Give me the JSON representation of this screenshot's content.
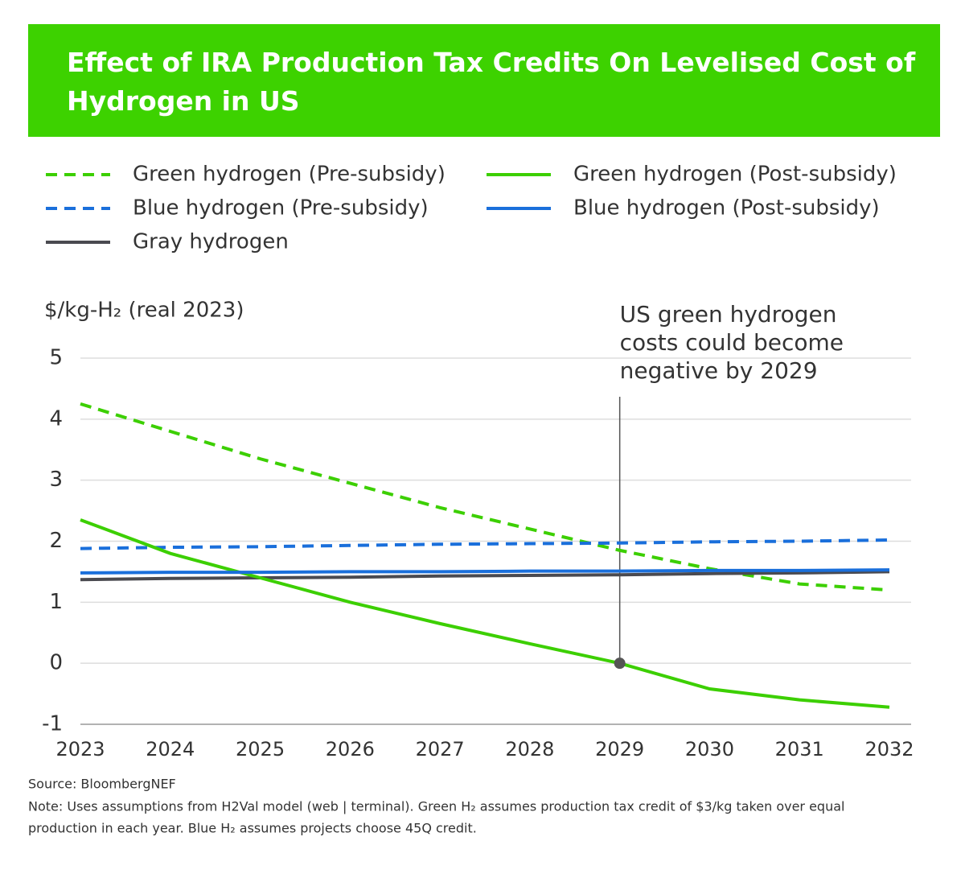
{
  "chart_data": {
    "type": "line",
    "title": "Effect of IRA Production Tax Credits On Levelised Cost of Hydrogen in US",
    "y_label": "$/kg-H₂ (real 2023)",
    "x": [
      2023,
      2024,
      2025,
      2026,
      2027,
      2028,
      2029,
      2030,
      2031,
      2032
    ],
    "series": [
      {
        "name": "Green hydrogen (Pre-subsidy)",
        "color": "#3ccf00",
        "dashed": true,
        "values": [
          4.25,
          3.8,
          3.35,
          2.95,
          2.55,
          2.2,
          1.85,
          1.55,
          1.3,
          1.2
        ]
      },
      {
        "name": "Blue hydrogen (Pre-subsidy)",
        "color": "#1a6fdb",
        "dashed": true,
        "values": [
          1.88,
          1.9,
          1.91,
          1.93,
          1.95,
          1.96,
          1.97,
          1.99,
          2.0,
          2.02
        ]
      },
      {
        "name": "Gray hydrogen",
        "color": "#4a4a50",
        "dashed": false,
        "values": [
          1.37,
          1.39,
          1.4,
          1.41,
          1.43,
          1.44,
          1.45,
          1.47,
          1.48,
          1.5
        ]
      },
      {
        "name": "Green hydrogen (Post-subsidy)",
        "color": "#3ccf00",
        "dashed": false,
        "values": [
          2.35,
          1.8,
          1.4,
          1.0,
          0.65,
          0.32,
          0,
          -0.42,
          -0.6,
          -0.72
        ]
      },
      {
        "name": "Blue hydrogen (Post-subsidy)",
        "color": "#1a6fdb",
        "dashed": false,
        "values": [
          1.48,
          1.49,
          1.49,
          1.5,
          1.5,
          1.51,
          1.51,
          1.52,
          1.52,
          1.53
        ]
      }
    ],
    "xlim": [
      2023,
      2032
    ],
    "xticks": [
      2023,
      2024,
      2025,
      2026,
      2027,
      2028,
      2029,
      2030,
      2031,
      2032
    ],
    "ylim": [
      -1,
      5
    ],
    "yticks": [
      -1,
      0,
      1,
      2,
      3,
      4,
      5
    ],
    "grid": true,
    "annotation": {
      "lines": [
        "US green hydrogen",
        "costs could become",
        "negative by 2029"
      ],
      "x": 2029,
      "y": 0
    },
    "source": "Source: BloombergNEF",
    "note": [
      "Note: Uses assumptions from H2Val model (web | terminal). Green H₂ assumes production tax credit of $3/kg taken over equal",
      "production in each year. Blue H₂ assumes projects choose 45Q credit."
    ]
  }
}
